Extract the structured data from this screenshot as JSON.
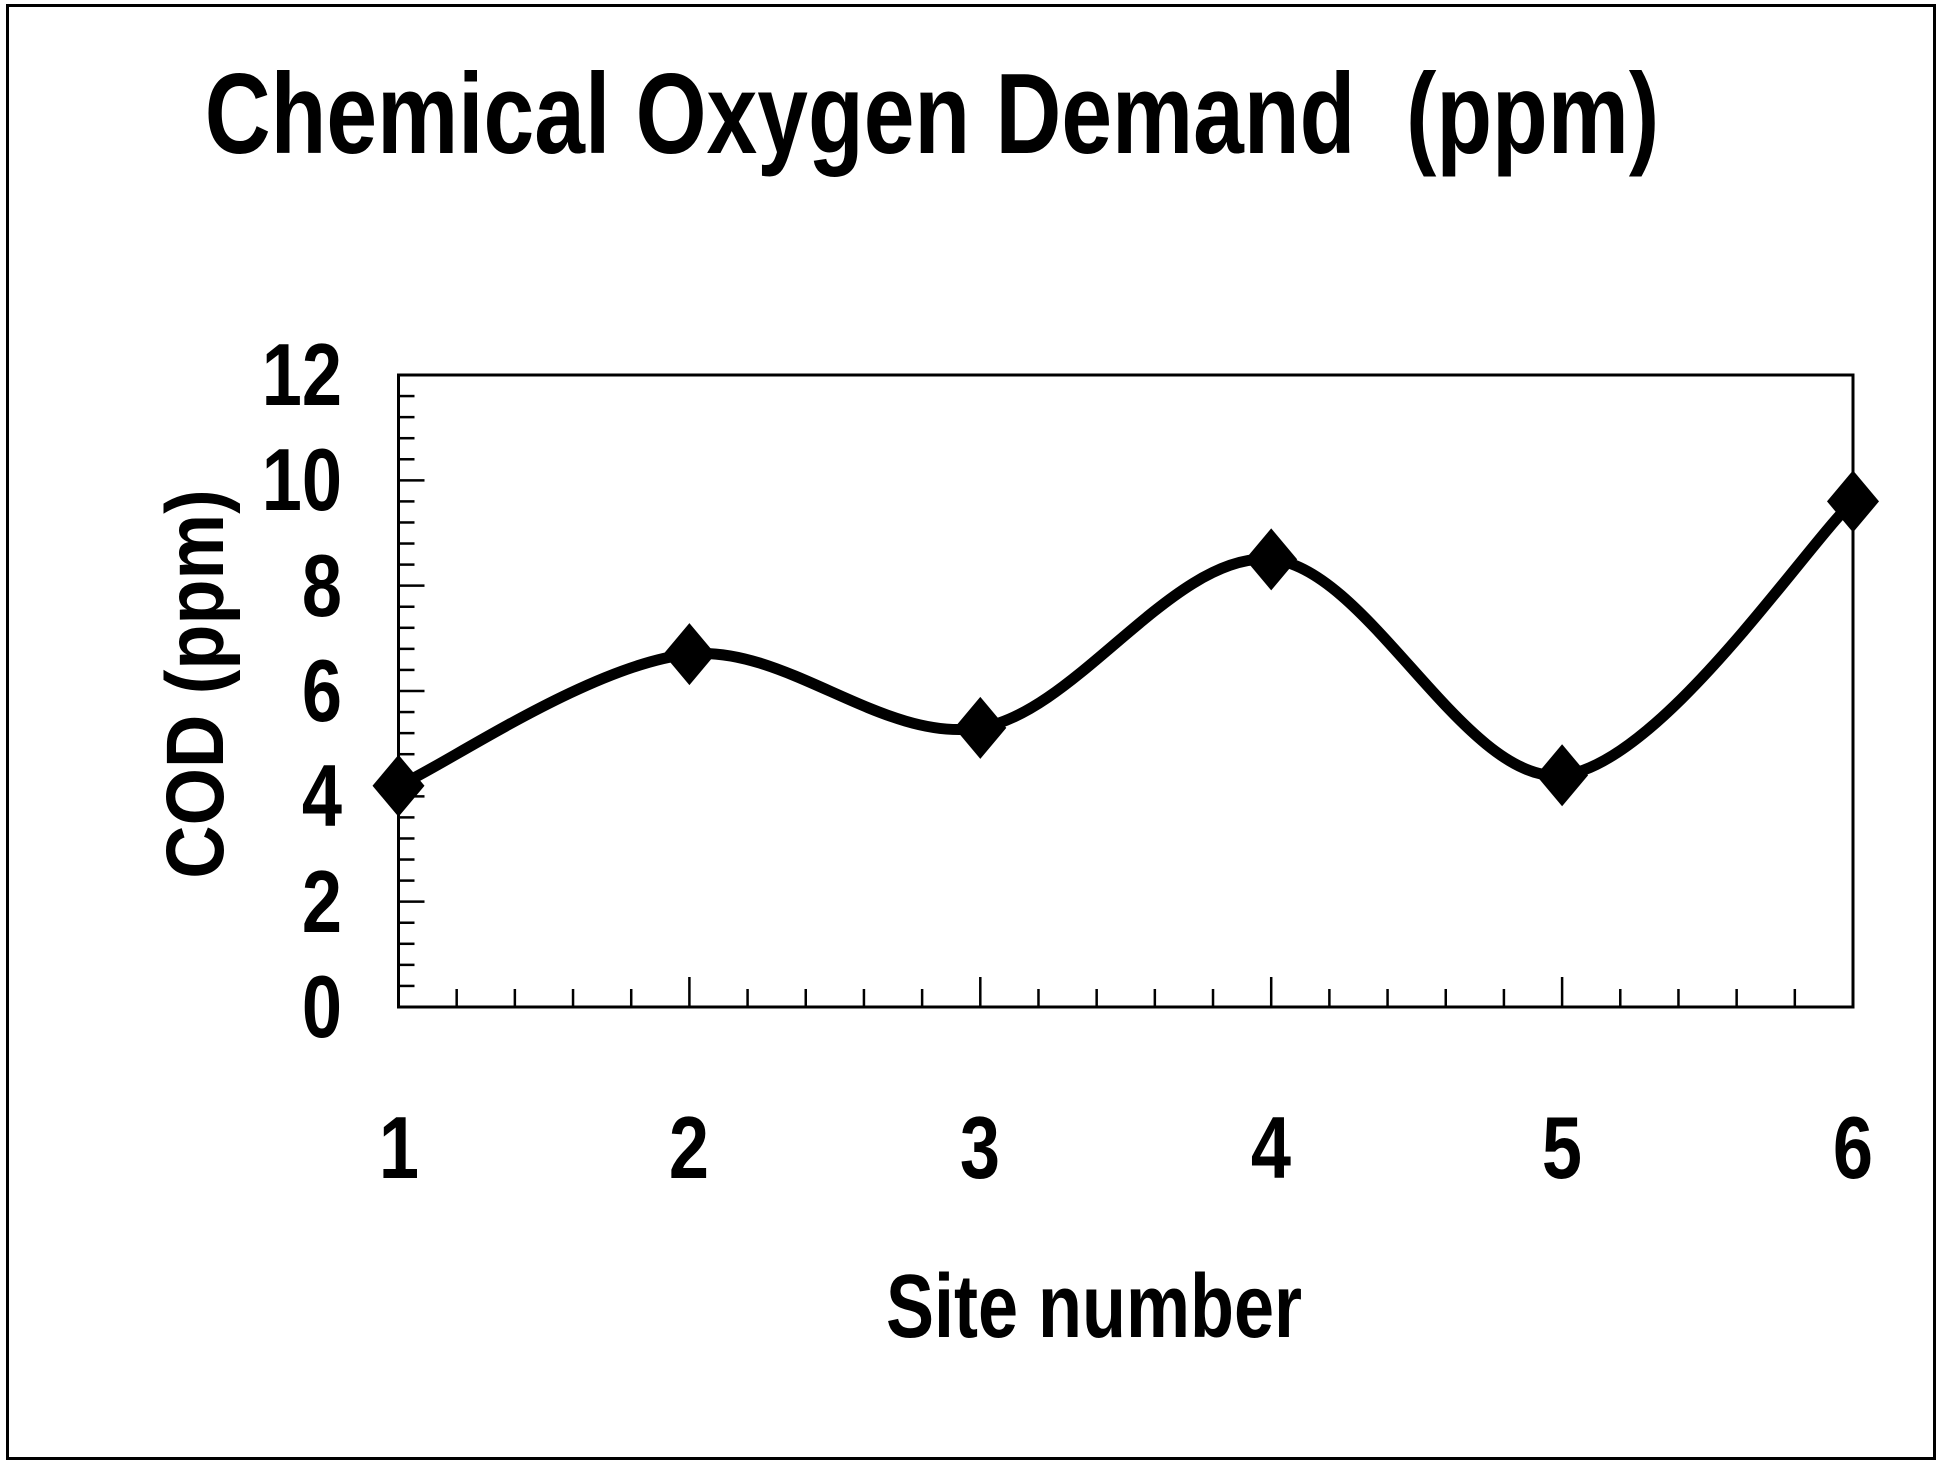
{
  "page": {
    "background": "#ffffff",
    "border_color": "#000000"
  },
  "chart_data": {
    "type": "line",
    "title": "Chemical Oxygen Demand  (ppm)",
    "xlabel": "Site number",
    "ylabel": "COD (ppm)",
    "categories": [
      1,
      2,
      3,
      4,
      5,
      6
    ],
    "series": [
      {
        "name": "COD",
        "values": [
          4.2,
          6.7,
          5.3,
          8.5,
          4.4,
          9.6
        ]
      }
    ],
    "xlim": [
      1,
      6
    ],
    "ylim": [
      0,
      12
    ],
    "y_major_ticks": [
      0,
      2,
      4,
      6,
      8,
      10,
      12
    ],
    "y_minor_step": 0.4,
    "x_major_step": 1,
    "x_minor_step": 0.2,
    "grid": false,
    "legend": false,
    "line_smoothed": true,
    "marker_shape": "diamond",
    "line_color": "#000000",
    "marker_color": "#000000",
    "axis_color": "#000000",
    "tick_style": "inside"
  }
}
